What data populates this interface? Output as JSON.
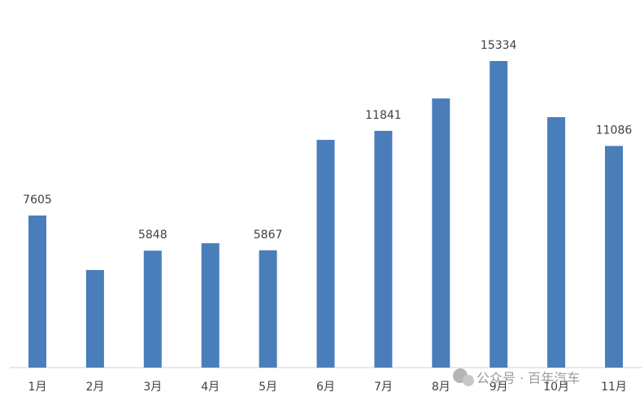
{
  "chart_data": {
    "type": "bar",
    "categories": [
      "1月",
      "2月",
      "3月",
      "4月",
      "5月",
      "6月",
      "7月",
      "8月",
      "9月",
      "10月",
      "11月"
    ],
    "values": [
      7605,
      4880,
      5848,
      6220,
      5867,
      11390,
      11841,
      13460,
      15334,
      12525,
      11086
    ],
    "value_labels": [
      "7605",
      null,
      "5848",
      null,
      "5867",
      null,
      "11841",
      null,
      "15334",
      null,
      "11086"
    ],
    "color": "#4a7ebb"
  },
  "watermark": "公众号 · 百年汽车"
}
